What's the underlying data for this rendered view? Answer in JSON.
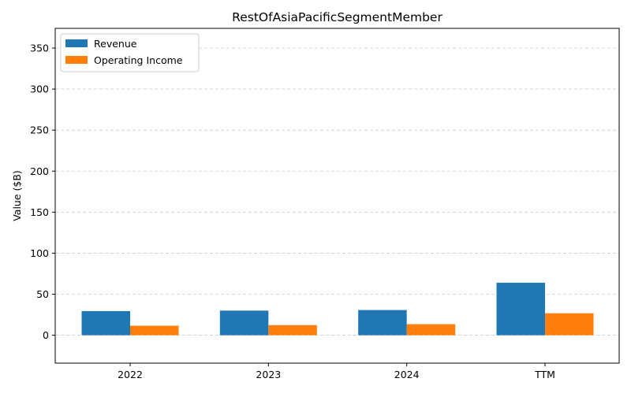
{
  "chart_data": {
    "type": "bar",
    "title": "RestOfAsiaPacificSegmentMember",
    "xlabel": "",
    "ylabel": "Value ($B)",
    "categories": [
      "2022",
      "2023",
      "2024",
      "TTM"
    ],
    "series": [
      {
        "name": "Revenue",
        "color": "#1f77b4",
        "values": [
          29.4,
          30.0,
          30.7,
          64.0
        ]
      },
      {
        "name": "Operating Income",
        "color": "#ff7f0e",
        "values": [
          11.6,
          12.3,
          13.5,
          26.8
        ]
      }
    ],
    "ylim": [
      -34,
      374
    ],
    "yticks": [
      0,
      50,
      100,
      150,
      200,
      250,
      300,
      350
    ],
    "grid": true,
    "legend_position": "top-left"
  }
}
